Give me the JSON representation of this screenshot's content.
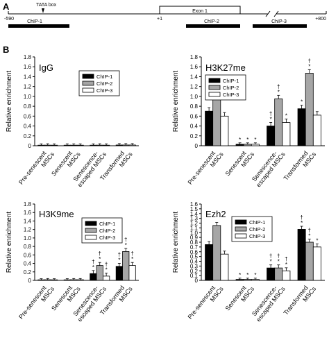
{
  "panel_a": {
    "letter": "A",
    "left_coord": "-590",
    "tata_label": "TATA box",
    "plus_one": "+1",
    "exon_label": "Exon 1",
    "right_coord": "+800",
    "chip_labels": [
      "ChIP-1",
      "ChIP-2",
      "ChIP-3"
    ]
  },
  "panel_b": {
    "letter": "B"
  },
  "colors": {
    "chip1": "#000000",
    "chip2": "#a6a6a6",
    "chip3": "#ffffff"
  },
  "chart_data": [
    {
      "type": "bar",
      "title": "IgG",
      "ylabel": "Relative enrichment",
      "ylim": [
        0,
        1.8
      ],
      "yticks": [
        "0",
        "0.2",
        "0.4",
        "0.6",
        "0.8",
        "1.0",
        "1.2",
        "1.4",
        "1.6",
        "1.8"
      ],
      "categories": [
        [
          "Pre-senescent",
          "MSCs"
        ],
        [
          "Senescent",
          "MSCs"
        ],
        [
          "Senescence-",
          "escaped MSCs"
        ],
        [
          "Transformed",
          "MSCs"
        ]
      ],
      "legend": [
        "ChIP-1",
        "ChIP-2",
        "ChIP-3"
      ],
      "legend_position": "top-center",
      "series": [
        {
          "name": "ChIP-1",
          "values": [
            0.01,
            0.01,
            0.01,
            0.015
          ]
        },
        {
          "name": "ChIP-2",
          "values": [
            0.012,
            0.01,
            0.012,
            0.015
          ]
        },
        {
          "name": "ChIP-3",
          "values": [
            0.01,
            0.01,
            0.01,
            0.015
          ]
        }
      ],
      "marks": [
        [
          "",
          "",
          "",
          ""
        ],
        [
          "",
          "",
          "",
          ""
        ],
        [
          "",
          "",
          "",
          ""
        ]
      ]
    },
    {
      "type": "bar",
      "title": "H3K27me",
      "ylabel": "Relative enrichment",
      "ylim": [
        0,
        1.8
      ],
      "yticks": [
        "0",
        "0.2",
        "0.4",
        "0.6",
        "0.8",
        "1.0",
        "1.2",
        "1.4",
        "1.6",
        "1.8"
      ],
      "categories": [
        [
          "Pre-senescent",
          "MSCs"
        ],
        [
          "Senescent",
          "MSCs"
        ],
        [
          "Senescence-",
          "escaped MSCs"
        ],
        [
          "Transformed",
          "MSCs"
        ]
      ],
      "legend": [
        "ChIP-1",
        "ChIP-2",
        "ChIP-3"
      ],
      "legend_position": "top-left",
      "series": [
        {
          "name": "ChIP-1",
          "values": [
            0.7,
            0.03,
            0.4,
            0.75
          ]
        },
        {
          "name": "ChIP-2",
          "values": [
            1.15,
            0.03,
            0.95,
            1.47
          ]
        },
        {
          "name": "ChIP-3",
          "values": [
            0.6,
            0.03,
            0.47,
            0.62
          ]
        }
      ],
      "marks": [
        [
          "",
          "*",
          "†*",
          "*"
        ],
        [
          "",
          "*",
          "†*",
          "†*"
        ],
        [
          "",
          "*",
          "*",
          ""
        ]
      ]
    },
    {
      "type": "bar",
      "title": "H3K9me",
      "ylabel": "Relative enrichment",
      "ylim": [
        0,
        1.8
      ],
      "yticks": [
        "0",
        "0.2",
        "0.4",
        "0.6",
        "0.8",
        "1.0",
        "1.2",
        "1.4",
        "1.6",
        "1.8"
      ],
      "categories": [
        [
          "Pre-senescent",
          "MSCs"
        ],
        [
          "Senescent",
          "MSCs"
        ],
        [
          "Senescence-",
          "escaped MSCs"
        ],
        [
          "Transformed",
          "MSCs"
        ]
      ],
      "legend": [
        "ChIP-1",
        "ChIP-2",
        "ChIP-3"
      ],
      "legend_position": "top-right",
      "series": [
        {
          "name": "ChIP-1",
          "values": [
            0.01,
            0.01,
            0.16,
            0.33
          ]
        },
        {
          "name": "ChIP-2",
          "values": [
            0.015,
            0.015,
            0.35,
            0.68
          ]
        },
        {
          "name": "ChIP-3",
          "values": [
            0.01,
            0.015,
            0.1,
            0.35
          ]
        }
      ],
      "marks": [
        [
          "",
          "",
          "†*",
          "†*"
        ],
        [
          "",
          "",
          "†*",
          "†*"
        ],
        [
          "",
          "",
          "†*",
          "†*"
        ]
      ]
    },
    {
      "type": "bar",
      "title": "Ezh2",
      "ylabel": "Relative enrichment",
      "ylim": [
        0,
        1.6
      ],
      "yticks": [
        "0",
        "0.1",
        "0.2",
        "0.3",
        "0.4",
        "0.5",
        "0.6",
        "0.7",
        "0.8",
        "0.9",
        "1.0",
        "1.1",
        "1.2",
        "1.3",
        "1.4",
        "1.5",
        "1.6"
      ],
      "categories": [
        [
          "Pre-senescent",
          "MSCs"
        ],
        [
          "Senescent",
          "MSCs"
        ],
        [
          "Senescence-",
          "escaped MSCs"
        ],
        [
          "Transformed",
          "MSCs"
        ]
      ],
      "legend": [
        "ChIP-1",
        "ChIP-2",
        "ChIP-3"
      ],
      "legend_position": "top-right",
      "series": [
        {
          "name": "ChIP-1",
          "values": [
            0.75,
            0.02,
            0.26,
            1.07
          ]
        },
        {
          "name": "ChIP-2",
          "values": [
            1.15,
            0.02,
            0.26,
            0.8
          ]
        },
        {
          "name": "ChIP-3",
          "values": [
            0.55,
            0.02,
            0.2,
            0.7
          ]
        }
      ],
      "marks": [
        [
          "",
          "*",
          "†*",
          "†*"
        ],
        [
          "",
          "*",
          "†*",
          "†*"
        ],
        [
          "",
          "*",
          "†*",
          "*"
        ]
      ]
    }
  ]
}
